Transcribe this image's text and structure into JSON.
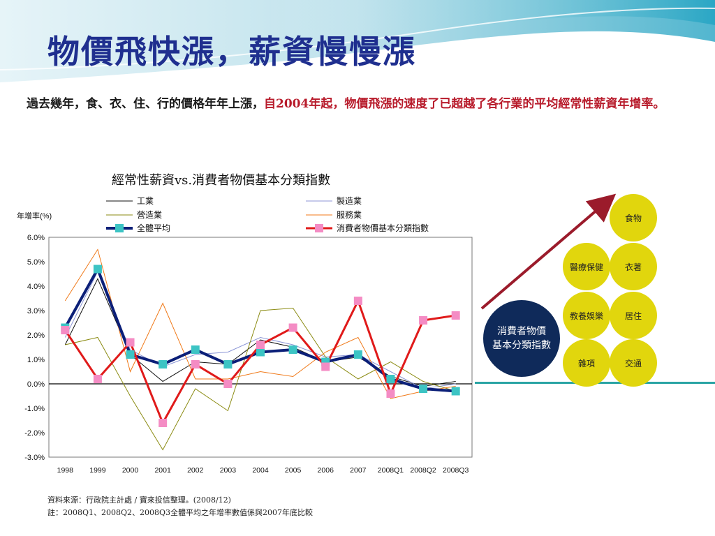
{
  "slide": {
    "title": "物價飛快漲，薪資慢慢漲",
    "intro_plain": "過去幾年，食、衣、住、行的價格年年上漲，",
    "intro_highlight": "自2004年起，物價飛漲的速度了已超越了各行業的平均經常性薪資年增率。",
    "source_line1": "資料來源：行政院主計處 / 寶來投信整理。(2008/12)",
    "source_line2": "註：2008Q1、2008Q2、2008Q3全體平均之年增率數值係與2007年底比較"
  },
  "diagram": {
    "center_label_line1": "消費者物價",
    "center_label_line2": "基本分類指數",
    "categories": [
      "食物",
      "醫療保健",
      "衣著",
      "教養娛樂",
      "居住",
      "雜項",
      "交通"
    ],
    "colors": {
      "circle": "#e1d60d",
      "center": "#0f2a5a",
      "arrow": "#9b1b2b"
    }
  },
  "chart_data": {
    "type": "line",
    "title": "經常性薪資vs.消費者物價基本分類指數",
    "ylabel": "年增率(%)",
    "xlabel": "",
    "categories": [
      "1998",
      "1999",
      "2000",
      "2001",
      "2002",
      "2003",
      "2004",
      "2005",
      "2006",
      "2007",
      "2008Q1",
      "2008Q2",
      "2008Q3"
    ],
    "ylim": [
      -3.0,
      6.0
    ],
    "yticks": [
      "6.0%",
      "5.0%",
      "4.0%",
      "3.0%",
      "2.0%",
      "1.0%",
      "0.0%",
      "-1.0%",
      "-2.0%",
      "-3.0%"
    ],
    "legend_position": "top",
    "series": [
      {
        "name": "工業",
        "color": "#111111",
        "width": 1,
        "marker": false,
        "values": [
          1.6,
          4.3,
          1.2,
          0.1,
          0.9,
          0.8,
          1.8,
          1.5,
          0.9,
          1.1,
          0.3,
          -0.1,
          0.1
        ]
      },
      {
        "name": "製造業",
        "color": "#8c96d6",
        "width": 1,
        "marker": false,
        "values": [
          1.9,
          4.6,
          1.4,
          0.7,
          1.2,
          1.3,
          1.9,
          1.6,
          1.1,
          1.2,
          0.5,
          -0.2,
          0.0
        ]
      },
      {
        "name": "營造業",
        "color": "#8b8b12",
        "width": 1,
        "marker": false,
        "values": [
          1.6,
          1.9,
          -0.5,
          -2.7,
          -0.2,
          -1.1,
          3.0,
          3.1,
          1.1,
          0.2,
          0.9,
          0.1,
          -0.3
        ]
      },
      {
        "name": "服務業",
        "color": "#f07a1a",
        "width": 1,
        "marker": false,
        "values": [
          3.4,
          5.5,
          0.5,
          3.3,
          0.2,
          0.2,
          0.5,
          0.3,
          1.3,
          1.9,
          -0.6,
          -0.3,
          -0.1
        ]
      },
      {
        "name": "全體平均",
        "color": "#0b1f78",
        "width": 4,
        "marker": true,
        "marker_color": "#3cc4c4",
        "values": [
          2.3,
          4.7,
          1.2,
          0.8,
          1.4,
          0.8,
          1.3,
          1.4,
          0.9,
          1.2,
          0.2,
          -0.2,
          -0.3
        ]
      },
      {
        "name": "消費者物價基本分類指數",
        "color": "#e01a1a",
        "width": 3,
        "marker": true,
        "marker_color": "#f48cc4",
        "values": [
          2.2,
          0.2,
          1.7,
          -1.6,
          0.8,
          0.0,
          1.6,
          2.3,
          0.7,
          3.4,
          -0.4,
          2.6,
          2.8
        ]
      }
    ]
  }
}
